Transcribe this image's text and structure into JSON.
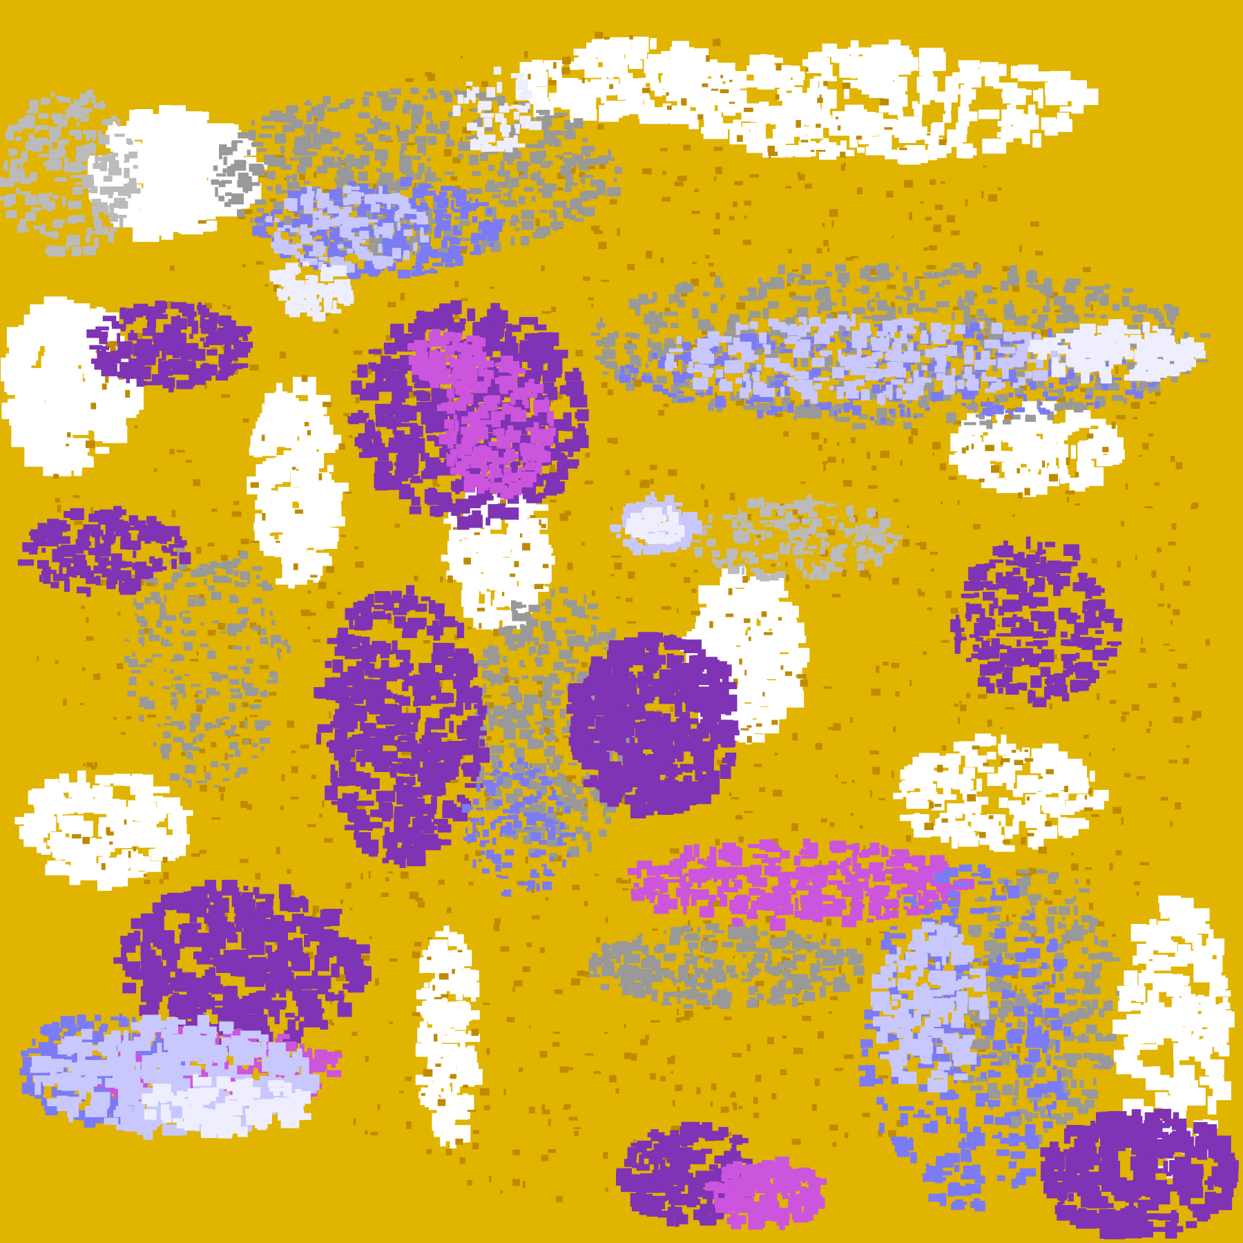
{
  "map": {
    "type": "classified-raster",
    "legend": [],
    "colors": {
      "gold": "#E0B400",
      "dark_gold": "#C08A00",
      "purple": "#7F33B5",
      "magenta": "#CC55DD",
      "blue": "#7B7BF5",
      "lavender": "#C8C8FF",
      "pale": "#EEEEFF",
      "gray": "#999999",
      "light_gray": "#BBBBBB",
      "white": "#FFFFFF"
    }
  }
}
